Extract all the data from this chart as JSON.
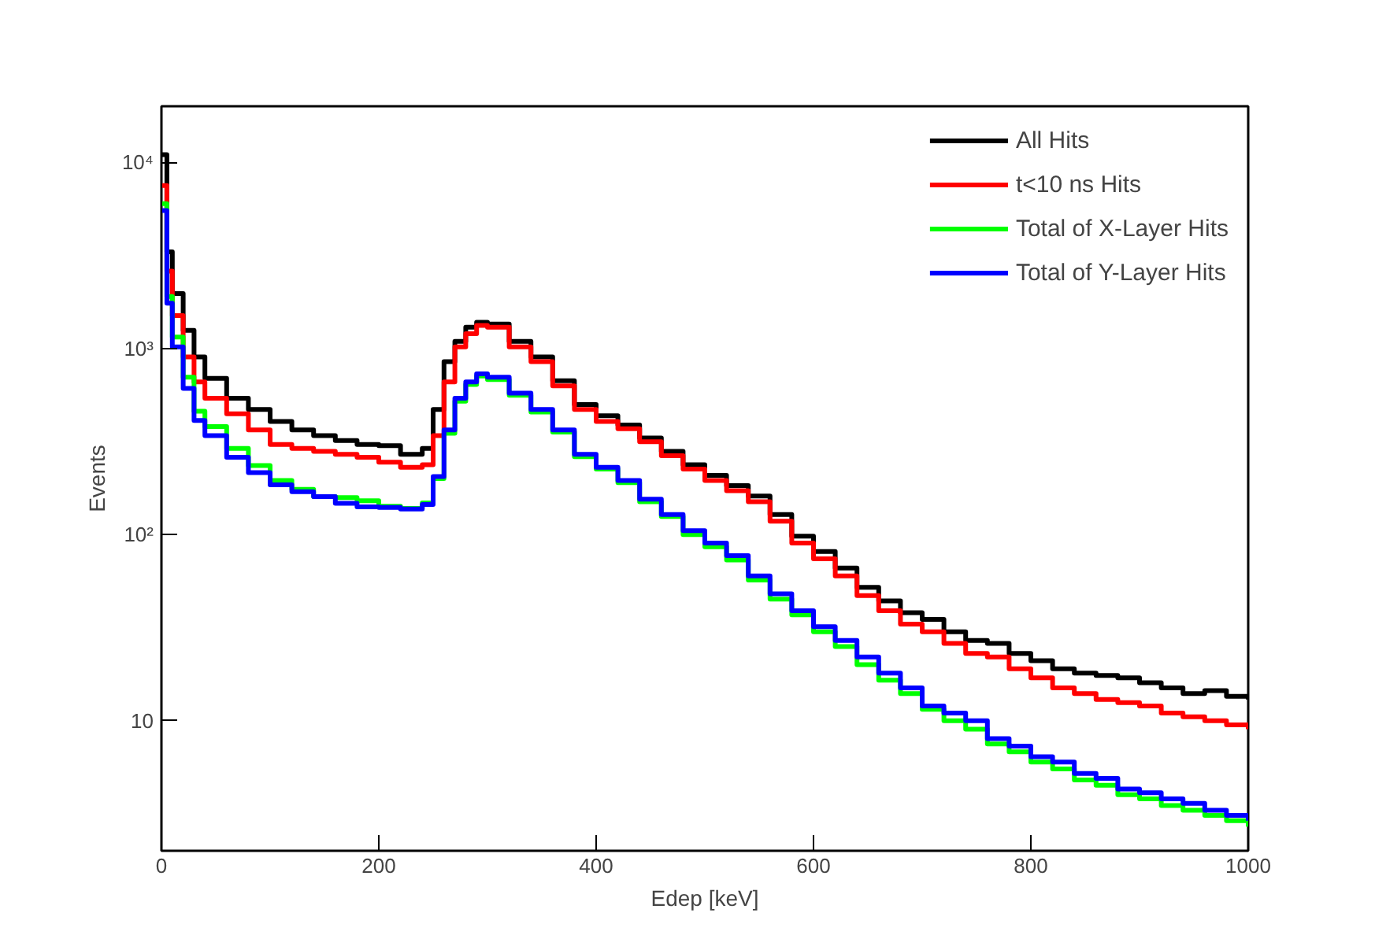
{
  "chart_data": {
    "type": "step",
    "xlabel": "Edep [keV]",
    "ylabel": "Events",
    "log": "y",
    "grid": false,
    "legend": "top right",
    "marker": "none",
    "line_style": "solid",
    "x": [
      0,
      5,
      10,
      20,
      30,
      40,
      60,
      80,
      100,
      120,
      140,
      160,
      180,
      200,
      220,
      240,
      250,
      260,
      270,
      280,
      290,
      300,
      320,
      340,
      360,
      380,
      400,
      420,
      440,
      460,
      480,
      500,
      520,
      540,
      560,
      580,
      600,
      620,
      640,
      660,
      680,
      700,
      720,
      740,
      760,
      780,
      800,
      820,
      840,
      860,
      880,
      900,
      920,
      940,
      960,
      980,
      1000
    ],
    "xlim": [
      0,
      1000
    ],
    "xticks": [
      0,
      200,
      400,
      600,
      800,
      1000
    ],
    "ylim": [
      2,
      20000
    ],
    "yticks": [
      {
        "value": 10,
        "label": "10"
      },
      {
        "value": 100,
        "label": "10²"
      },
      {
        "value": 1000,
        "label": "10³"
      },
      {
        "value": 10000,
        "label": "10⁴"
      }
    ],
    "series": [
      {
        "name": "All Hits",
        "color": "#000000",
        "values": [
          11000,
          3300,
          1970,
          1250,
          900,
          690,
          540,
          470,
          405,
          365,
          340,
          320,
          305,
          300,
          270,
          290,
          470,
          850,
          1090,
          1300,
          1380,
          1350,
          1090,
          900,
          670,
          500,
          435,
          388,
          330,
          280,
          237,
          208,
          183,
          161,
          128,
          98,
          81,
          66,
          52,
          44,
          38,
          35,
          30,
          27,
          26,
          23,
          21,
          19,
          18,
          17.5,
          17,
          16,
          15,
          14,
          14.5,
          13.5,
          13
        ]
      },
      {
        "name": "t<10 ns Hits",
        "color": "#ff0000",
        "values": [
          7500,
          2600,
          1500,
          900,
          660,
          540,
          445,
          365,
          305,
          290,
          280,
          270,
          260,
          245,
          230,
          237,
          340,
          660,
          1020,
          1200,
          1330,
          1300,
          1020,
          850,
          630,
          470,
          405,
          370,
          315,
          265,
          225,
          195,
          172,
          150,
          118,
          90,
          74,
          60,
          47,
          39,
          33,
          30,
          26,
          23,
          22,
          19,
          17,
          15,
          14,
          13,
          12.5,
          12,
          11,
          10.5,
          10,
          9.5,
          9
        ]
      },
      {
        "name": "Total of X-Layer Hits",
        "color": "#00ff00",
        "values": [
          6000,
          1900,
          1150,
          700,
          460,
          380,
          290,
          235,
          195,
          175,
          160,
          158,
          152,
          142,
          138,
          148,
          200,
          350,
          520,
          640,
          710,
          680,
          560,
          455,
          355,
          262,
          225,
          190,
          150,
          125,
          100,
          86,
          73,
          57,
          45,
          37,
          30,
          25,
          20,
          16.5,
          14,
          11.5,
          10,
          9,
          7.5,
          6.8,
          6,
          5.5,
          4.8,
          4.5,
          4,
          3.8,
          3.5,
          3.3,
          3.1,
          2.9,
          2.7
        ]
      },
      {
        "name": "Total of Y-Layer Hits",
        "color": "#0000ff",
        "values": [
          5500,
          1750,
          1020,
          610,
          410,
          340,
          260,
          215,
          185,
          170,
          160,
          147,
          141,
          140,
          137,
          145,
          205,
          365,
          540,
          660,
          730,
          700,
          575,
          470,
          365,
          270,
          230,
          195,
          155,
          128,
          105,
          90,
          77,
          60,
          48,
          39,
          32,
          27,
          22,
          18,
          15,
          12,
          11,
          10,
          8,
          7.3,
          6.4,
          6,
          5.2,
          4.9,
          4.3,
          4.1,
          3.8,
          3.6,
          3.3,
          3.1,
          2.9
        ]
      }
    ]
  }
}
